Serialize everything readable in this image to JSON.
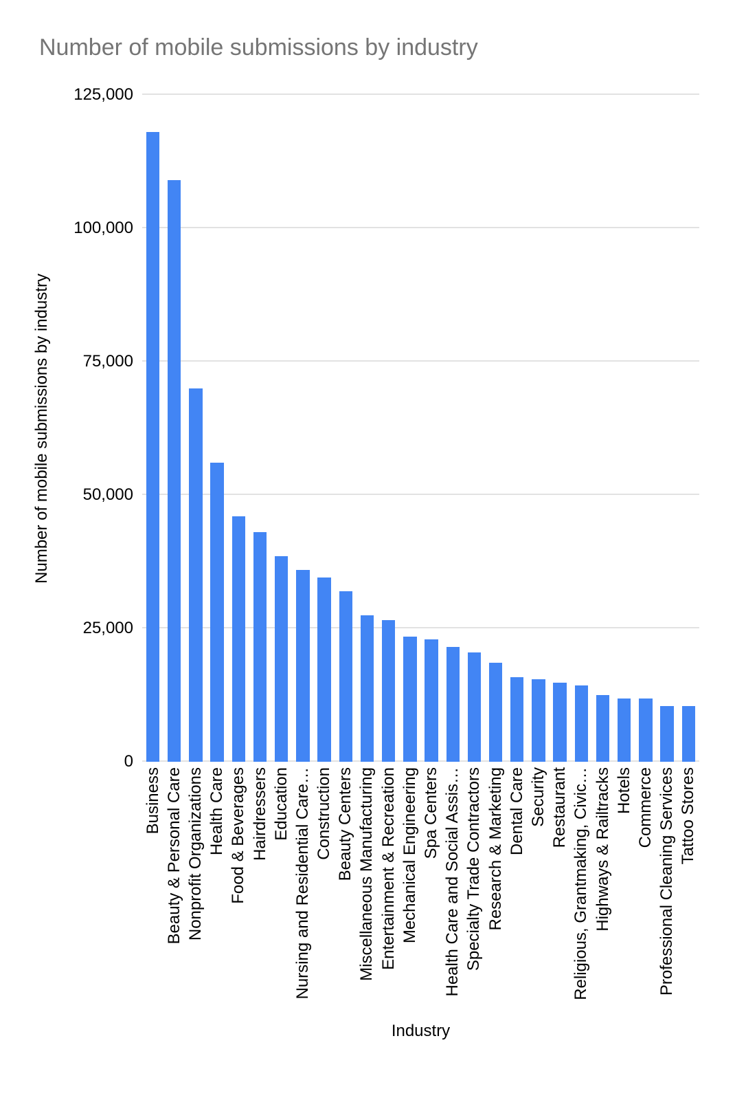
{
  "title": "Number of mobile submissions by industry",
  "chart_data": {
    "type": "bar",
    "title": "Number of mobile submissions by industry",
    "xlabel": "Industry",
    "ylabel": "Number of mobile submissions by industry",
    "ylim": [
      0,
      125000
    ],
    "grid": true,
    "legend": "none",
    "bar_color": "#4285f4",
    "title_color": "#757575",
    "gridline_color": "#e2e2e2",
    "yticks": [
      {
        "value": 0,
        "label": "0"
      },
      {
        "value": 25000,
        "label": "25,000"
      },
      {
        "value": 50000,
        "label": "50,000"
      },
      {
        "value": 75000,
        "label": "75,000"
      },
      {
        "value": 100000,
        "label": "100,000"
      },
      {
        "value": 125000,
        "label": "125,000"
      }
    ],
    "categories": [
      "Business",
      "Beauty & Personal Care",
      "Nonprofit Organizations",
      "Health Care",
      "Food & Beverages",
      "Hairdressers",
      "Education",
      "Nursing and Residential Care…",
      "Construction",
      "Beauty Centers",
      "Miscellaneous Manufacturing",
      "Entertainment & Recreation",
      "Mechanical Engineering",
      "Spa Centers",
      "Health Care and Social Assis…",
      "Specialty Trade Contractors",
      "Research & Marketing",
      "Dental Care",
      "Security",
      "Restaurant",
      "Religious, Grantmaking, Civic…",
      "Highways & Railtracks",
      "Hotels",
      "Commerce",
      "Professional Cleaning Services",
      "Tattoo Stores"
    ],
    "values": [
      118000,
      109000,
      70000,
      56000,
      46000,
      43000,
      38500,
      36000,
      34500,
      32000,
      27500,
      26500,
      23500,
      23000,
      21500,
      20500,
      18500,
      15800,
      15500,
      14800,
      14300,
      12500,
      11800,
      11800,
      10500,
      10500
    ]
  }
}
